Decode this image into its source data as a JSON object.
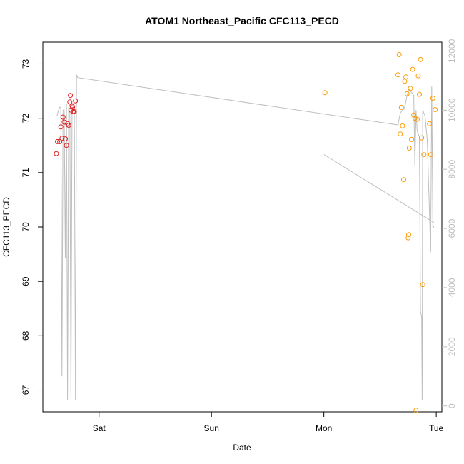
{
  "chart_data": {
    "type": "scatter",
    "title": "ATOM1 Northeast_Pacific CFC113_PECD",
    "xlabel": "Date",
    "ylabel": "CFC113_PECD",
    "x_tick_labels": [
      "Sat",
      "Sun",
      "Mon",
      "Tue"
    ],
    "x_tick_values": [
      1,
      2,
      3,
      4
    ],
    "xlim": [
      0.5,
      4.05
    ],
    "ylim": [
      66.6,
      73.4
    ],
    "y_ticks": [
      67,
      68,
      69,
      70,
      71,
      72,
      73
    ],
    "y2lim": [
      -200,
      12300
    ],
    "y2_ticks": [
      0,
      2000,
      4000,
      6000,
      8000,
      10000,
      12000
    ],
    "colors": {
      "series1": "#e41a1c",
      "series2": "#ff9900",
      "line": "#bebebe",
      "axis": "#000000",
      "right_axis": "#bebebe"
    },
    "series": [
      {
        "color": "#e41a1c",
        "points": [
          [
            0.62,
            71.35
          ],
          [
            0.63,
            71.57
          ],
          [
            0.65,
            71.57
          ],
          [
            0.66,
            71.84
          ],
          [
            0.67,
            71.63
          ],
          [
            0.68,
            72.02
          ],
          [
            0.69,
            71.93
          ],
          [
            0.7,
            71.62
          ],
          [
            0.71,
            71.5
          ],
          [
            0.72,
            71.9
          ],
          [
            0.73,
            71.87
          ],
          [
            0.74,
            72.3
          ],
          [
            0.745,
            72.42
          ],
          [
            0.75,
            72.15
          ],
          [
            0.76,
            72.23
          ],
          [
            0.765,
            72.21
          ],
          [
            0.77,
            72.12
          ],
          [
            0.78,
            72.12
          ],
          [
            0.79,
            72.32
          ]
        ]
      },
      {
        "color": "#ff9900",
        "points": [
          [
            3.01,
            72.47
          ],
          [
            3.66,
            72.8
          ],
          [
            3.67,
            73.17
          ],
          [
            3.68,
            71.71
          ],
          [
            3.69,
            72.2
          ],
          [
            3.7,
            71.86
          ],
          [
            3.71,
            70.87
          ],
          [
            3.72,
            72.68
          ],
          [
            3.73,
            72.76
          ],
          [
            3.74,
            72.45
          ],
          [
            3.75,
            69.8
          ],
          [
            3.755,
            69.86
          ],
          [
            3.77,
            72.55
          ],
          [
            3.76,
            71.45
          ],
          [
            3.78,
            71.61
          ],
          [
            3.79,
            72.9
          ],
          [
            3.8,
            72.06
          ],
          [
            3.81,
            72.0
          ],
          [
            3.82,
            66.63
          ],
          [
            3.83,
            71.98
          ],
          [
            3.84,
            72.78
          ],
          [
            3.85,
            72.44
          ],
          [
            3.86,
            73.08
          ],
          [
            3.87,
            71.64
          ],
          [
            3.88,
            68.94
          ],
          [
            3.89,
            71.33
          ],
          [
            3.94,
            71.9
          ],
          [
            3.95,
            71.33
          ],
          [
            3.97,
            72.37
          ],
          [
            3.99,
            72.16
          ]
        ]
      }
    ],
    "line_series": [
      {
        "axis": "right",
        "points": [
          [
            0.625,
            9800
          ],
          [
            0.64,
            10000
          ],
          [
            0.65,
            10100
          ],
          [
            0.66,
            10100
          ],
          [
            0.67,
            1000
          ],
          [
            0.68,
            10000
          ],
          [
            0.69,
            10000
          ],
          [
            0.7,
            5000
          ],
          [
            0.71,
            10200
          ],
          [
            0.72,
            200
          ],
          [
            0.73,
            10100
          ],
          [
            0.74,
            9900
          ],
          [
            0.75,
            200
          ],
          [
            0.76,
            10000
          ],
          [
            0.77,
            10100
          ],
          [
            0.78,
            9900
          ],
          [
            0.79,
            200
          ],
          [
            0.8,
            11200
          ],
          [
            0.81,
            11100
          ],
          [
            3.66,
            9500
          ],
          [
            3.67,
            9700
          ],
          [
            3.68,
            9900
          ],
          [
            3.7,
            10000
          ],
          [
            3.72,
            10100
          ],
          [
            3.74,
            10500
          ],
          [
            3.76,
            10700
          ],
          [
            3.78,
            10600
          ],
          [
            3.8,
            10500
          ],
          [
            3.81,
            8100
          ],
          [
            3.82,
            10000
          ],
          [
            3.83,
            9300
          ],
          [
            3.84,
            9200
          ],
          [
            3.85,
            9100
          ],
          [
            3.86,
            3200
          ],
          [
            3.87,
            3000
          ],
          [
            3.875,
            200
          ],
          [
            3.88,
            10000
          ],
          [
            3.9,
            9800
          ],
          [
            3.92,
            9000
          ],
          [
            3.94,
            6500
          ],
          [
            3.95,
            5200
          ],
          [
            3.96,
            10800
          ],
          [
            3.97,
            6000
          ],
          [
            3.98,
            6100
          ]
        ]
      },
      {
        "axis": "right",
        "points": [
          [
            3.0,
            8500
          ],
          [
            3.98,
            6200
          ]
        ]
      }
    ],
    "grid": false
  }
}
